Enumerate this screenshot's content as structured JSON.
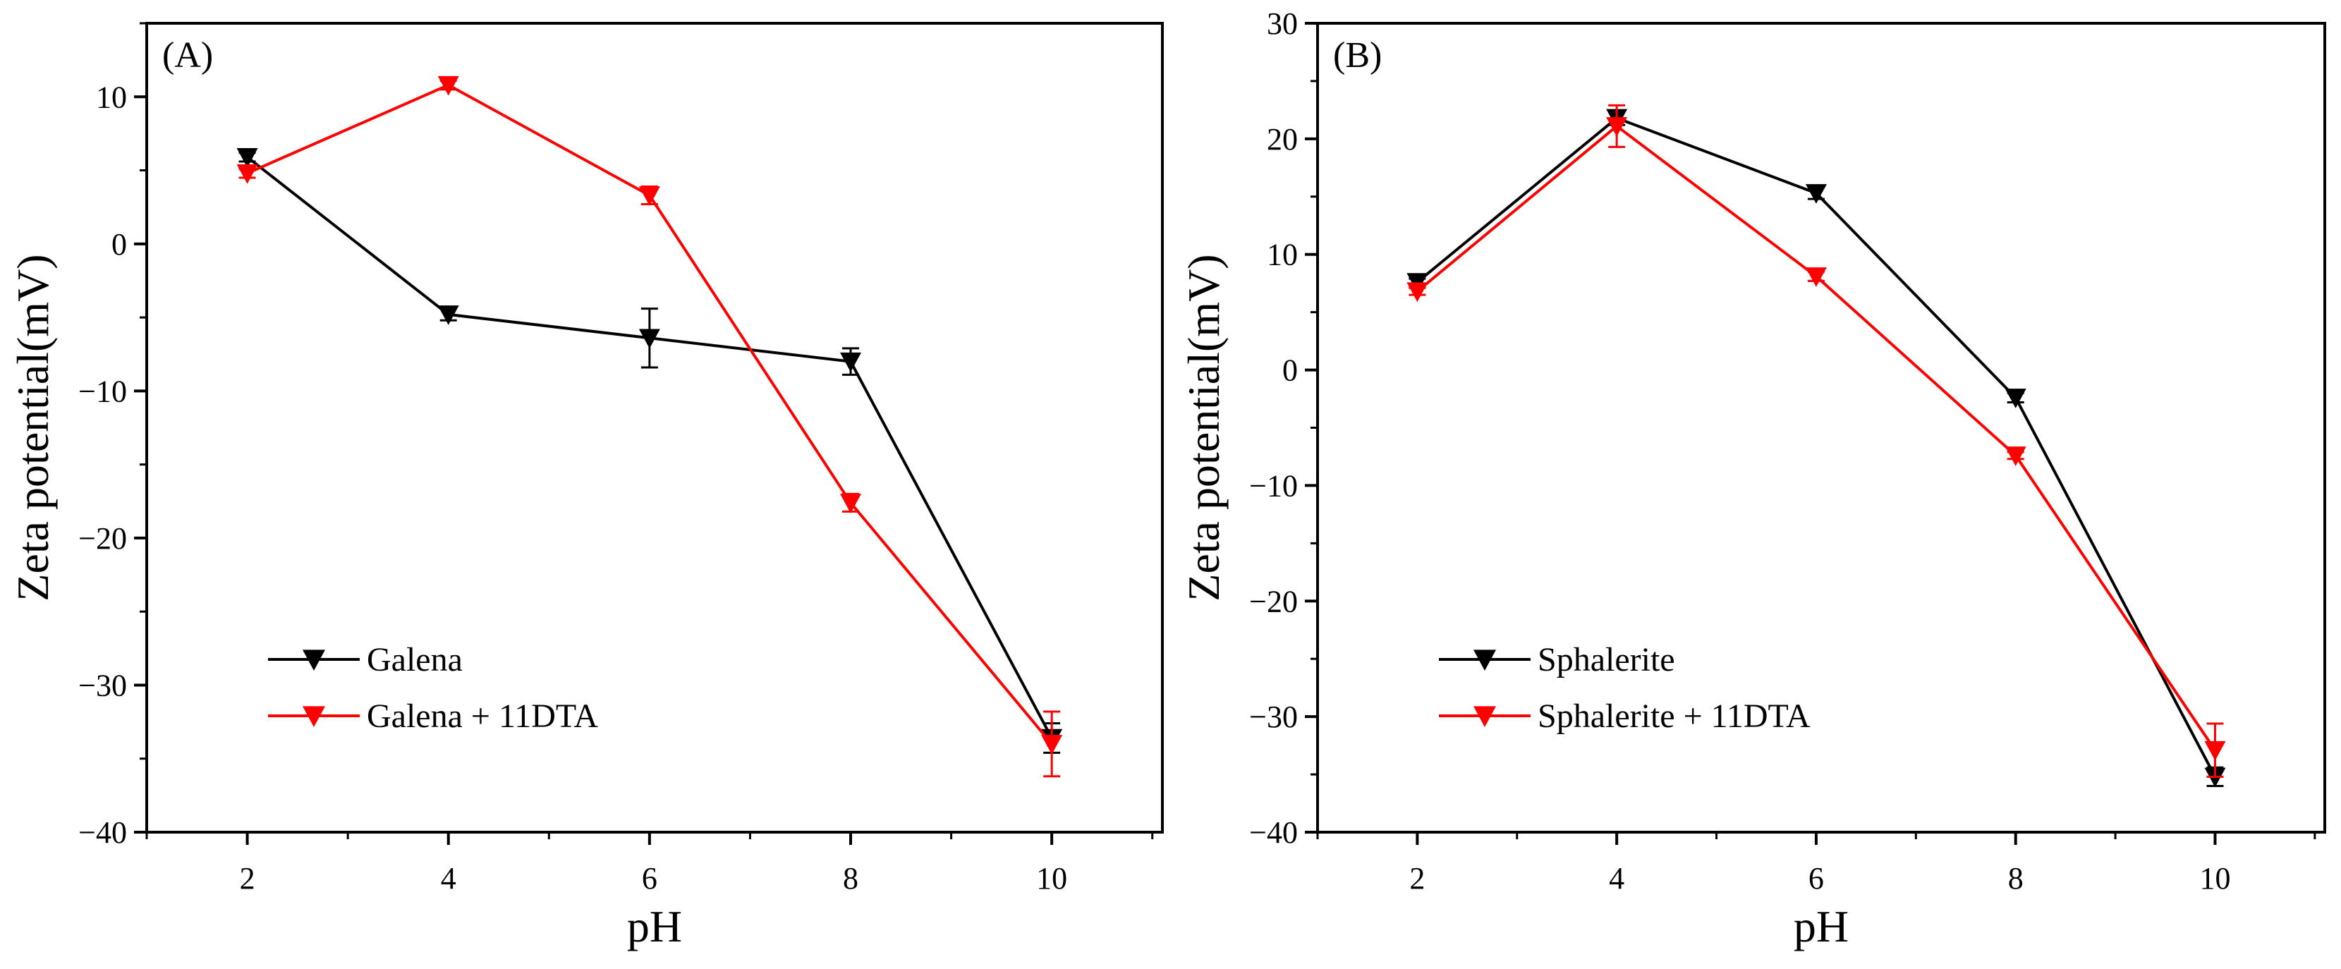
{
  "chart_data": [
    {
      "type": "line",
      "panel_label": "(A)",
      "xlabel": "pH",
      "ylabel": "Zeta potential(mV)",
      "x": [
        2,
        4,
        6,
        8,
        10
      ],
      "x_ticks": [
        "2",
        "4",
        "6",
        "8",
        "10"
      ],
      "xlim": [
        1,
        11.1
      ],
      "ylim": [
        -40,
        15
      ],
      "y_ticks": [
        10,
        0,
        -10,
        -20,
        -30,
        -40
      ],
      "y_tick_labels": [
        "10",
        "0",
        "−10",
        "−20",
        "−30",
        "−40"
      ],
      "grid": false,
      "legend_position": "lower-left",
      "series": [
        {
          "name": "Galena",
          "color": "#000000",
          "marker": "triangle-down",
          "values": [
            5.9,
            -4.8,
            -6.4,
            -8.0,
            -33.6
          ],
          "errors": [
            0.3,
            0.4,
            2.0,
            0.9,
            1.0
          ]
        },
        {
          "name": "Galena + 11DTA",
          "color": "#ff0000",
          "marker": "triangle-down",
          "values": [
            4.8,
            10.8,
            3.3,
            -17.6,
            -34.0
          ],
          "errors": [
            0.3,
            0.3,
            0.6,
            0.6,
            2.2
          ]
        }
      ]
    },
    {
      "type": "line",
      "panel_label": "(B)",
      "xlabel": "pH",
      "ylabel": "Zeta potential(mV)",
      "x": [
        2,
        4,
        6,
        8,
        10
      ],
      "x_ticks": [
        "2",
        "4",
        "6",
        "8",
        "10"
      ],
      "xlim": [
        1,
        11.1
      ],
      "ylim": [
        -40,
        30
      ],
      "y_ticks": [
        30,
        20,
        10,
        0,
        -10,
        -20,
        -30,
        -40
      ],
      "y_tick_labels": [
        "30",
        "20",
        "10",
        "0",
        "−10",
        "−20",
        "−30",
        "−40"
      ],
      "grid": false,
      "legend_position": "lower-left",
      "series": [
        {
          "name": "Sphalerite",
          "color": "#000000",
          "marker": "triangle-down",
          "values": [
            7.6,
            21.8,
            15.3,
            -2.4,
            -35.2
          ],
          "errors": [
            0.3,
            0.6,
            0.5,
            0.4,
            0.8
          ]
        },
        {
          "name": "Sphalerite + 11DTA",
          "color": "#ff0000",
          "marker": "triangle-down",
          "values": [
            6.8,
            21.1,
            8.1,
            -7.4,
            -32.9
          ],
          "errors": [
            0.3,
            1.8,
            0.4,
            0.3,
            2.3
          ]
        }
      ]
    }
  ]
}
